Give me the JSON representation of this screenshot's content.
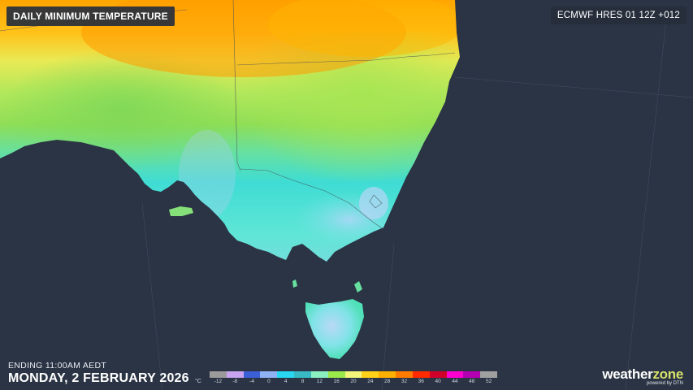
{
  "title": "DAILY MINIMUM TEMPERATURE",
  "model": "ECMWF HRES 01 12Z +012",
  "ending": "ENDING 11:00AM AEDT",
  "date": "MONDAY, 2 FEBRUARY 2026",
  "legend": {
    "unit": "°C",
    "ticks": [
      "-12",
      "-8",
      "-4",
      "0",
      "4",
      "8",
      "12",
      "16",
      "20",
      "24",
      "28",
      "32",
      "36",
      "40",
      "44",
      "48",
      "52"
    ],
    "colors": [
      "#9b9b9b",
      "#c7a3f0",
      "#3b5fd6",
      "#8fb2f5",
      "#27d8f0",
      "#38b9c4",
      "#8bf0c0",
      "#9be84a",
      "#f4f57a",
      "#ffd21a",
      "#ffb000",
      "#ff7a00",
      "#ff2a00",
      "#d0002a",
      "#ff00d0",
      "#b300b3",
      "#a0a0a0"
    ]
  },
  "logo": {
    "main": "weather",
    "accent": "zone",
    "sub": "powered by DTN"
  },
  "colors": {
    "ocean": "#2b3444",
    "panel": "#262e3c"
  }
}
